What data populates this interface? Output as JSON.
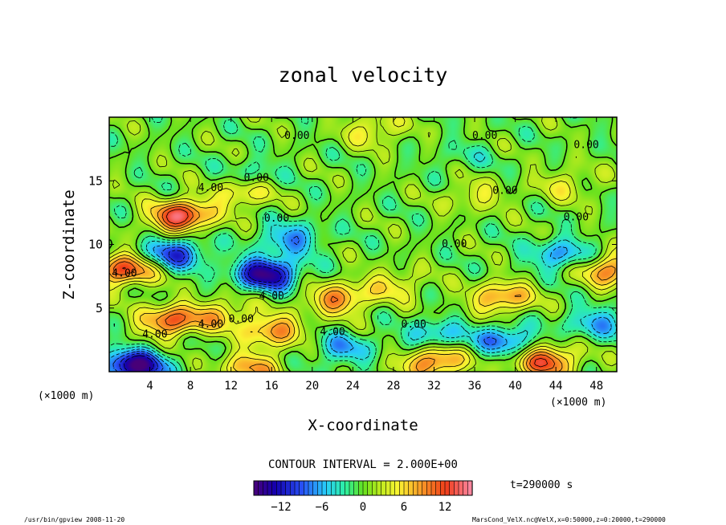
{
  "chart_data": {
    "type": "heatmap",
    "title": "zonal velocity",
    "xlabel": "X-coordinate",
    "ylabel": "Z-coordinate",
    "x_unit": "(×1000 m)",
    "y_unit": "(×1000 m)",
    "xlim": [
      0,
      50
    ],
    "ylim": [
      0,
      20
    ],
    "x_ticks": [
      "4",
      "8",
      "12",
      "16",
      "20",
      "24",
      "28",
      "32",
      "36",
      "40",
      "44",
      "48"
    ],
    "y_ticks": [
      "5",
      "10",
      "15"
    ],
    "contour_interval_text": "CONTOUR INTERVAL = 2.000E+00",
    "time_text": "t=290000 s",
    "colorbar": {
      "min": -16,
      "max": 16,
      "tick_labels": [
        "−12",
        "−6",
        "0",
        "6",
        "12"
      ],
      "tick_values": [
        -12,
        -6,
        0,
        6,
        12
      ]
    },
    "contour_labels": [
      {
        "text": "0.00",
        "x": 18.5,
        "z": 18.6
      },
      {
        "text": "0.00",
        "x": 37.0,
        "z": 18.6
      },
      {
        "text": "0.00",
        "x": 47.0,
        "z": 17.9
      },
      {
        "text": "0.00",
        "x": 14.5,
        "z": 15.3
      },
      {
        "text": "4.00",
        "x": 10.0,
        "z": 14.5
      },
      {
        "text": "0.00",
        "x": 39.0,
        "z": 14.3
      },
      {
        "text": "0.00",
        "x": 16.5,
        "z": 12.1
      },
      {
        "text": "0.00",
        "x": 46.0,
        "z": 12.2
      },
      {
        "text": "0.00",
        "x": 34.0,
        "z": 10.1
      },
      {
        "text": "4.00",
        "x": 1.5,
        "z": 7.8
      },
      {
        "text": "4.00",
        "x": 16.0,
        "z": 6.0
      },
      {
        "text": "0.00",
        "x": 13.0,
        "z": 4.2
      },
      {
        "text": "4.00",
        "x": 10.0,
        "z": 3.8
      },
      {
        "text": "4.00",
        "x": 4.5,
        "z": 3.0
      },
      {
        "text": "4.00",
        "x": 22.0,
        "z": 3.2
      },
      {
        "text": "0.00",
        "x": 30.0,
        "z": 3.8
      }
    ],
    "field_features": [
      {
        "x": 15.5,
        "z": 7.7,
        "value": -15
      },
      {
        "x": 6.5,
        "z": 9.3,
        "value": -10
      },
      {
        "x": 18,
        "z": 10.5,
        "value": -7
      },
      {
        "x": 44.5,
        "z": 9.2,
        "value": -7
      },
      {
        "x": 39,
        "z": 2.5,
        "value": -8
      },
      {
        "x": 2.5,
        "z": 0.4,
        "value": -16
      },
      {
        "x": 23,
        "z": 1.8,
        "value": -6
      },
      {
        "x": 48,
        "z": 3.8,
        "value": -6
      },
      {
        "x": 32,
        "z": 2.8,
        "value": -6
      },
      {
        "x": 14,
        "z": 15.5,
        "value": -3
      },
      {
        "x": 35,
        "z": 16.8,
        "value": -2
      },
      {
        "x": 1.5,
        "z": 8,
        "value": 12
      },
      {
        "x": 6,
        "z": 4,
        "value": 11
      },
      {
        "x": 7,
        "z": 12.2,
        "value": 14
      },
      {
        "x": 13,
        "z": 14,
        "value": 6
      },
      {
        "x": 16.2,
        "z": 3.2,
        "value": 9
      },
      {
        "x": 22.5,
        "z": 5.7,
        "value": 9
      },
      {
        "x": 38.7,
        "z": 5.8,
        "value": 9
      },
      {
        "x": 49.5,
        "z": 8,
        "value": 10
      },
      {
        "x": 11,
        "z": 4.5,
        "value": 6
      },
      {
        "x": 28,
        "z": 6.8,
        "value": 5
      },
      {
        "x": 32,
        "z": 0.8,
        "value": 11
      },
      {
        "x": 43,
        "z": 0.8,
        "value": 12
      },
      {
        "x": 14,
        "z": 0.3,
        "value": 8
      },
      {
        "x": 36,
        "z": 13.8,
        "value": 4
      },
      {
        "x": 26,
        "z": 19,
        "value": 5
      },
      {
        "x": 45,
        "z": 14.7,
        "value": 4
      }
    ]
  },
  "footer": {
    "left": "/usr/bin/gpview  2008-11-20",
    "right": "MarsCond_VelX.nc@VelX,x=0:50000,z=0:20000,t=290000"
  }
}
